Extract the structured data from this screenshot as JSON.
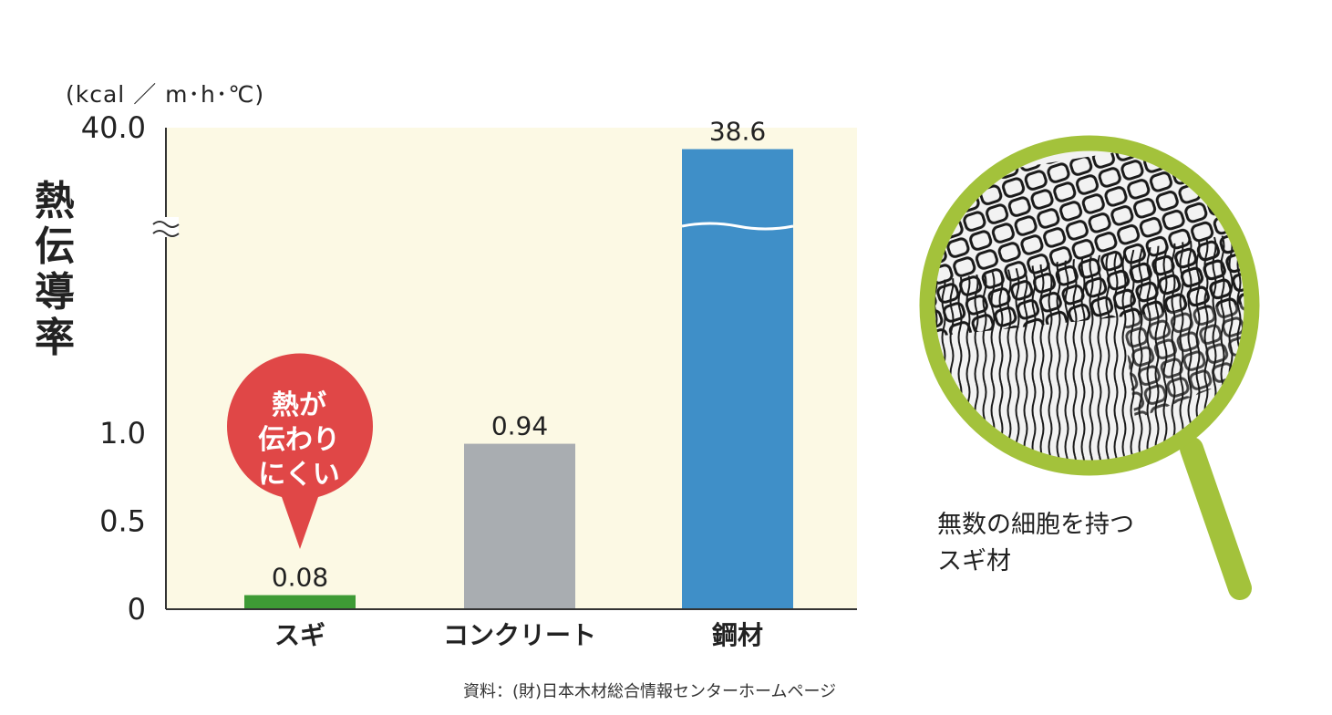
{
  "chart_data": {
    "type": "bar",
    "categories": [
      "スギ",
      "コンクリート",
      "鋼材"
    ],
    "values": [
      0.08,
      0.94,
      38.6
    ],
    "value_labels": [
      "0.08",
      "0.94",
      "38.6"
    ],
    "colors": [
      "#3e9b35",
      "#a9adb1",
      "#3f8fc8"
    ],
    "unit": "(kcal ／ m･h･℃)",
    "ylabel": [
      "熱",
      "伝",
      "導",
      "率"
    ],
    "yticks": [
      "0",
      "0.5",
      "1.0",
      "40.0"
    ],
    "ylim": [
      0,
      40.0
    ],
    "axis_break": true,
    "background": "#fcf9e4",
    "source": "資料：(財)日本木材総合情報センターホームページ",
    "callout": {
      "lines": [
        "熱が",
        "伝わり",
        "にくい"
      ],
      "color": "#e04747"
    }
  },
  "illustration": {
    "caption_lines": [
      "無数の細胞を持つ",
      "スギ材"
    ],
    "ring_color": "#a3c23b"
  }
}
